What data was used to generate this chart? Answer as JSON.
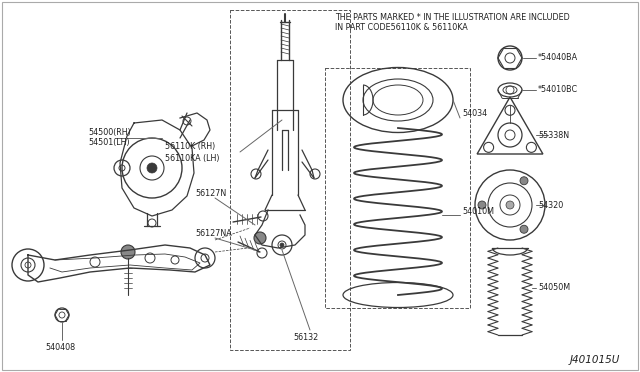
{
  "background_color": "#ffffff",
  "border_color": "#aaaaaa",
  "diagram_id": "J401015U",
  "note_line1": "THE PARTS MARKED * IN THE ILLUSTRATION ARE INCLUDED",
  "note_line2": "IN PART CODE56110K & 56110KA",
  "font_size_label": 6.0,
  "font_size_note": 5.8,
  "font_size_id": 7.5,
  "line_color": "#3a3a3a",
  "text_color": "#222222",
  "fig_w": 6.4,
  "fig_h": 3.72,
  "dpi": 100,
  "xlim": [
    0,
    640
  ],
  "ylim": [
    0,
    372
  ]
}
